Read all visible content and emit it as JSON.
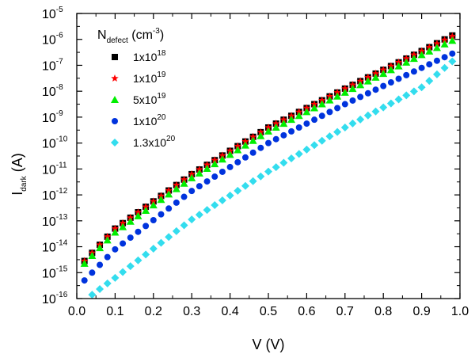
{
  "chart_data": {
    "type": "scatter",
    "title": "",
    "xlabel": "V (V)",
    "ylabel": {
      "base": "I",
      "sub": "dark",
      "unit": " (A)"
    },
    "xlim": [
      0.0,
      1.0
    ],
    "ylim": [
      1e-16,
      1e-05
    ],
    "yscale": "log",
    "grid": false,
    "x_ticks": [
      "0.0",
      "0.1",
      "0.2",
      "0.3",
      "0.4",
      "0.5",
      "0.6",
      "0.7",
      "0.8",
      "0.9",
      "1.0"
    ],
    "y_ticks": [
      {
        "base": "10",
        "exp": "-16"
      },
      {
        "base": "10",
        "exp": "-15"
      },
      {
        "base": "10",
        "exp": "-14"
      },
      {
        "base": "10",
        "exp": "-13"
      },
      {
        "base": "10",
        "exp": "-12"
      },
      {
        "base": "10",
        "exp": "-11"
      },
      {
        "base": "10",
        "exp": "-10"
      },
      {
        "base": "10",
        "exp": "-9"
      },
      {
        "base": "10",
        "exp": "-8"
      },
      {
        "base": "10",
        "exp": "-7"
      },
      {
        "base": "10",
        "exp": "-6"
      },
      {
        "base": "10",
        "exp": "-5"
      }
    ],
    "legend": {
      "placement": "top-left",
      "title": {
        "base": "N",
        "sub": "defect",
        "unit": " (cm",
        "exp": "-3",
        "close": ")"
      },
      "entries": [
        {
          "mant": "1x10",
          "exp": "18"
        },
        {
          "mant": "1x10",
          "exp": "19"
        },
        {
          "mant": "5x10",
          "exp": "19"
        },
        {
          "mant": "1x10",
          "exp": "20"
        },
        {
          "mant": "1.3x10",
          "exp": "20"
        }
      ]
    },
    "series": [
      {
        "marker": "square",
        "color": "#000000",
        "x_start": 0.02,
        "x_step": 0.02,
        "x_end": 0.98,
        "log_anchors": [
          [
            0.02,
            -14.55
          ],
          [
            0.1,
            -13.3
          ],
          [
            0.3,
            -11.2
          ],
          [
            0.5,
            -9.4
          ],
          [
            0.7,
            -7.9
          ],
          [
            0.9,
            -6.45
          ],
          [
            0.98,
            -5.85
          ]
        ]
      },
      {
        "marker": "star",
        "color": "#ff0000",
        "x_start": 0.02,
        "x_step": 0.02,
        "x_end": 0.98,
        "log_anchors": [
          [
            0.02,
            -14.55
          ],
          [
            0.1,
            -13.3
          ],
          [
            0.3,
            -11.2
          ],
          [
            0.5,
            -9.4
          ],
          [
            0.7,
            -7.9
          ],
          [
            0.9,
            -6.45
          ],
          [
            0.98,
            -5.88
          ]
        ]
      },
      {
        "marker": "triangle",
        "color": "#00ee00",
        "x_start": 0.02,
        "x_step": 0.02,
        "x_end": 0.98,
        "log_anchors": [
          [
            0.02,
            -14.65
          ],
          [
            0.1,
            -13.45
          ],
          [
            0.3,
            -11.35
          ],
          [
            0.5,
            -9.55
          ],
          [
            0.7,
            -8.05
          ],
          [
            0.9,
            -6.6
          ],
          [
            0.98,
            -6.05
          ]
        ]
      },
      {
        "marker": "circle",
        "color": "#0033dd",
        "x_start": 0.02,
        "x_step": 0.02,
        "x_end": 0.98,
        "log_anchors": [
          [
            0.02,
            -15.3
          ],
          [
            0.1,
            -14.1
          ],
          [
            0.3,
            -11.85
          ],
          [
            0.5,
            -10.0
          ],
          [
            0.7,
            -8.5
          ],
          [
            0.9,
            -7.1
          ],
          [
            0.98,
            -6.55
          ]
        ]
      },
      {
        "marker": "diamond",
        "color": "#33ddee",
        "x_start": 0.04,
        "x_step": 0.02,
        "x_end": 0.98,
        "log_anchors": [
          [
            0.04,
            -15.85
          ],
          [
            0.1,
            -15.2
          ],
          [
            0.3,
            -12.95
          ],
          [
            0.5,
            -11.1
          ],
          [
            0.7,
            -9.4
          ],
          [
            0.9,
            -7.85
          ],
          [
            0.98,
            -6.85
          ]
        ]
      }
    ]
  }
}
